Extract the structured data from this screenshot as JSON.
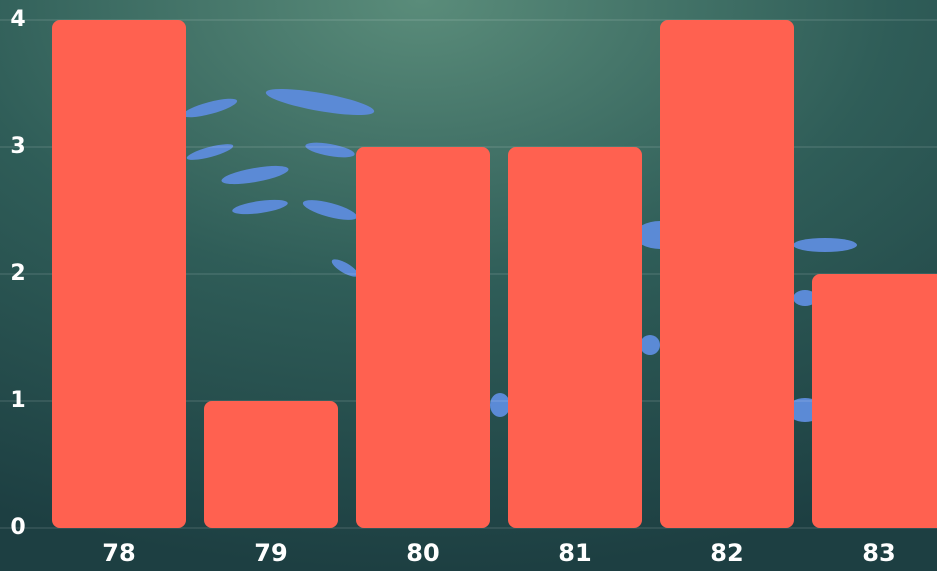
{
  "chart_data": {
    "type": "bar",
    "categories": [
      "78",
      "79",
      "80",
      "81",
      "82",
      "83"
    ],
    "values": [
      4,
      1,
      3,
      3,
      4,
      2
    ],
    "color": "#ff6150",
    "ylim": [
      0,
      4
    ],
    "yticks": [
      0,
      1,
      2,
      3,
      4
    ],
    "grid": true
  }
}
